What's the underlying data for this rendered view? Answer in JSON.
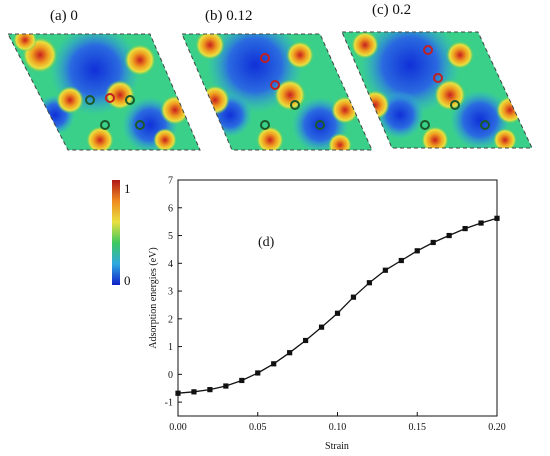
{
  "panels": [
    {
      "label": "(a) 0"
    },
    {
      "label": "(b)  0.12"
    },
    {
      "label": "(c) 0.2"
    }
  ],
  "colorbar": {
    "max_label": "1",
    "min_label": "0"
  },
  "chart_data": {
    "type": "line",
    "annotation": "(d)",
    "xlabel": "Strain",
    "ylabel": "Adsorption energies (eV)",
    "xlim": [
      0.0,
      0.2
    ],
    "ylim": [
      -1.5,
      7
    ],
    "xticks": [
      "0.00",
      "0.05",
      "0.10",
      "0.15",
      "0.20"
    ],
    "yticks": [
      "-1",
      "0",
      "1",
      "2",
      "3",
      "4",
      "5",
      "6",
      "7"
    ],
    "grid": false,
    "series": [
      {
        "x": [
          0.0,
          0.01,
          0.02,
          0.03,
          0.04,
          0.05,
          0.06,
          0.07,
          0.08,
          0.09,
          0.1,
          0.11,
          0.12,
          0.13,
          0.14,
          0.15,
          0.16,
          0.17,
          0.18,
          0.19,
          0.2
        ],
        "y": [
          -0.68,
          -0.63,
          -0.55,
          -0.42,
          -0.22,
          0.05,
          0.38,
          0.78,
          1.22,
          1.7,
          2.2,
          2.78,
          3.3,
          3.75,
          4.1,
          4.45,
          4.75,
          5.0,
          5.25,
          5.45,
          5.62
        ]
      }
    ]
  }
}
